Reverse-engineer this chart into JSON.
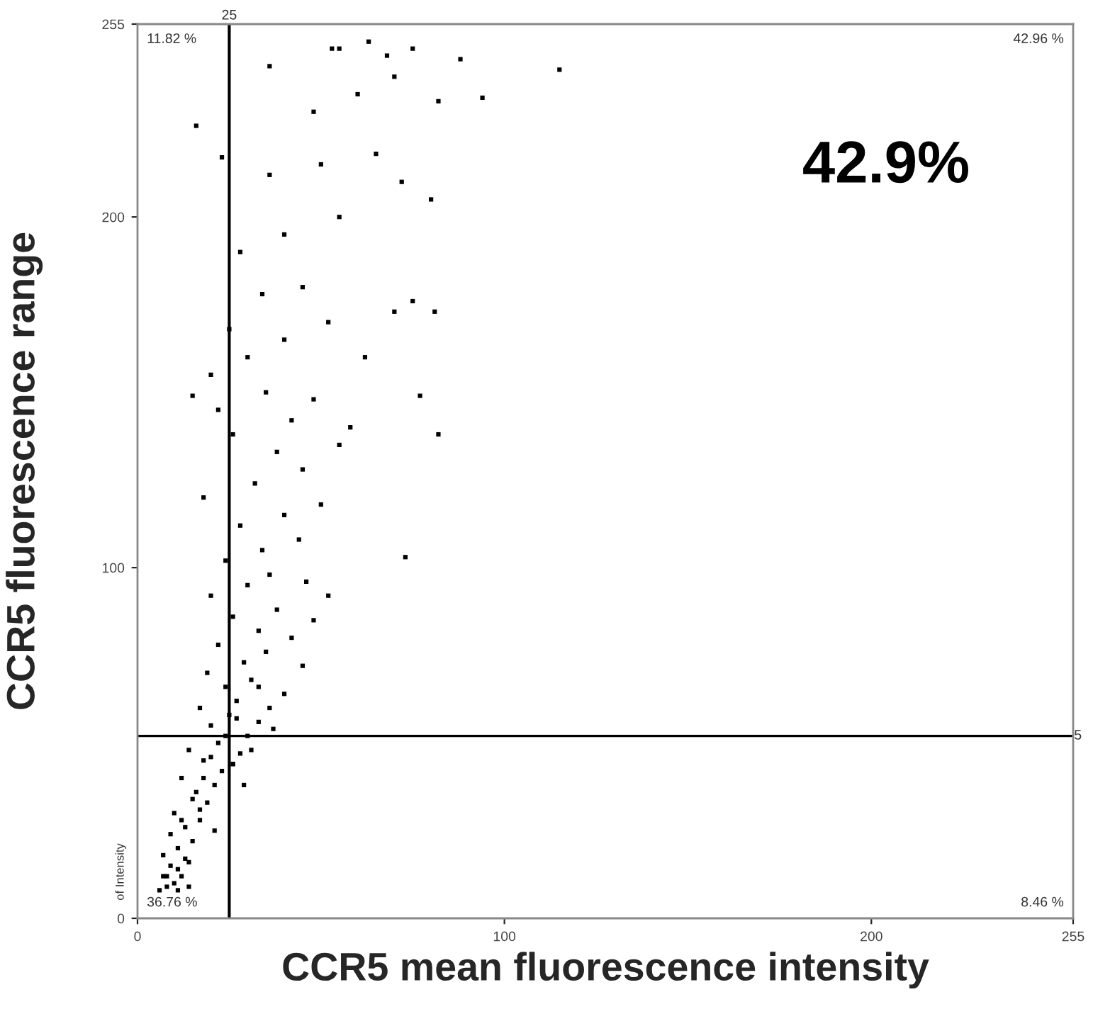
{
  "chart_data": {
    "type": "scatter",
    "xlabel": "CCR5 mean fluorescence intensity",
    "ylabel": "CCR5 fluorescence range",
    "xlim": [
      0,
      255
    ],
    "ylim": [
      0,
      255
    ],
    "xticks": [
      0,
      100,
      200,
      255
    ],
    "yticks": [
      0,
      100,
      200,
      255
    ],
    "grid": false,
    "marker": "square",
    "ref_lines": [
      {
        "axis": "x",
        "value": 25,
        "label": "25",
        "color": "#000000"
      },
      {
        "axis": "y",
        "value": 52,
        "color": "#000000"
      }
    ],
    "annotations": [
      "11.82 %",
      "42.96 %",
      "36.76 %",
      "8.46 %",
      "42.9%",
      "of Intensity",
      "5"
    ],
    "series": [
      {
        "color": "#000000",
        "x": [
          6,
          8,
          10,
          12,
          9,
          14,
          7,
          11,
          15,
          13,
          17,
          10,
          19,
          16,
          21,
          12,
          23,
          18,
          26,
          14,
          22,
          28,
          30,
          20,
          25,
          33,
          17,
          27,
          36,
          24,
          31,
          40,
          19,
          29,
          35,
          45,
          22,
          33,
          42,
          26,
          38,
          48,
          20,
          30,
          36,
          46,
          52,
          24,
          34,
          44,
          28,
          40,
          50,
          18,
          32,
          45,
          38,
          55,
          26,
          42,
          22,
          35,
          48,
          58,
          20,
          30,
          40,
          25,
          52,
          62,
          34,
          45,
          70,
          75,
          28,
          40,
          55,
          72,
          36,
          50,
          65,
          80,
          48,
          60,
          70,
          36,
          55,
          53,
          63,
          68,
          75,
          88,
          115,
          94,
          82,
          16,
          23,
          15,
          82,
          73,
          81,
          77,
          8,
          11,
          13,
          9,
          12,
          15,
          18,
          20,
          24,
          27,
          31,
          17,
          21,
          26,
          29,
          33,
          37,
          14,
          11,
          7
        ],
        "values": [
          8,
          9,
          10,
          12,
          15,
          16,
          18,
          20,
          22,
          26,
          28,
          30,
          33,
          36,
          38,
          40,
          42,
          45,
          44,
          48,
          50,
          47,
          52,
          55,
          58,
          56,
          60,
          62,
          60,
          66,
          68,
          64,
          70,
          73,
          76,
          72,
          78,
          82,
          80,
          86,
          88,
          85,
          92,
          95,
          98,
          96,
          92,
          102,
          105,
          108,
          112,
          115,
          118,
          120,
          124,
          128,
          133,
          135,
          138,
          142,
          145,
          150,
          148,
          140,
          155,
          160,
          165,
          168,
          170,
          160,
          178,
          180,
          173,
          176,
          190,
          195,
          200,
          210,
          212,
          215,
          218,
          205,
          230,
          235,
          240,
          243,
          248,
          248,
          250,
          246,
          248,
          245,
          242,
          234,
          233,
          226,
          217,
          149,
          138,
          103,
          173,
          149,
          12,
          14,
          17,
          24,
          28,
          34,
          40,
          46,
          52,
          57,
          48,
          31,
          25,
          44,
          38,
          66,
          54,
          9,
          8,
          12
        ]
      }
    ]
  }
}
